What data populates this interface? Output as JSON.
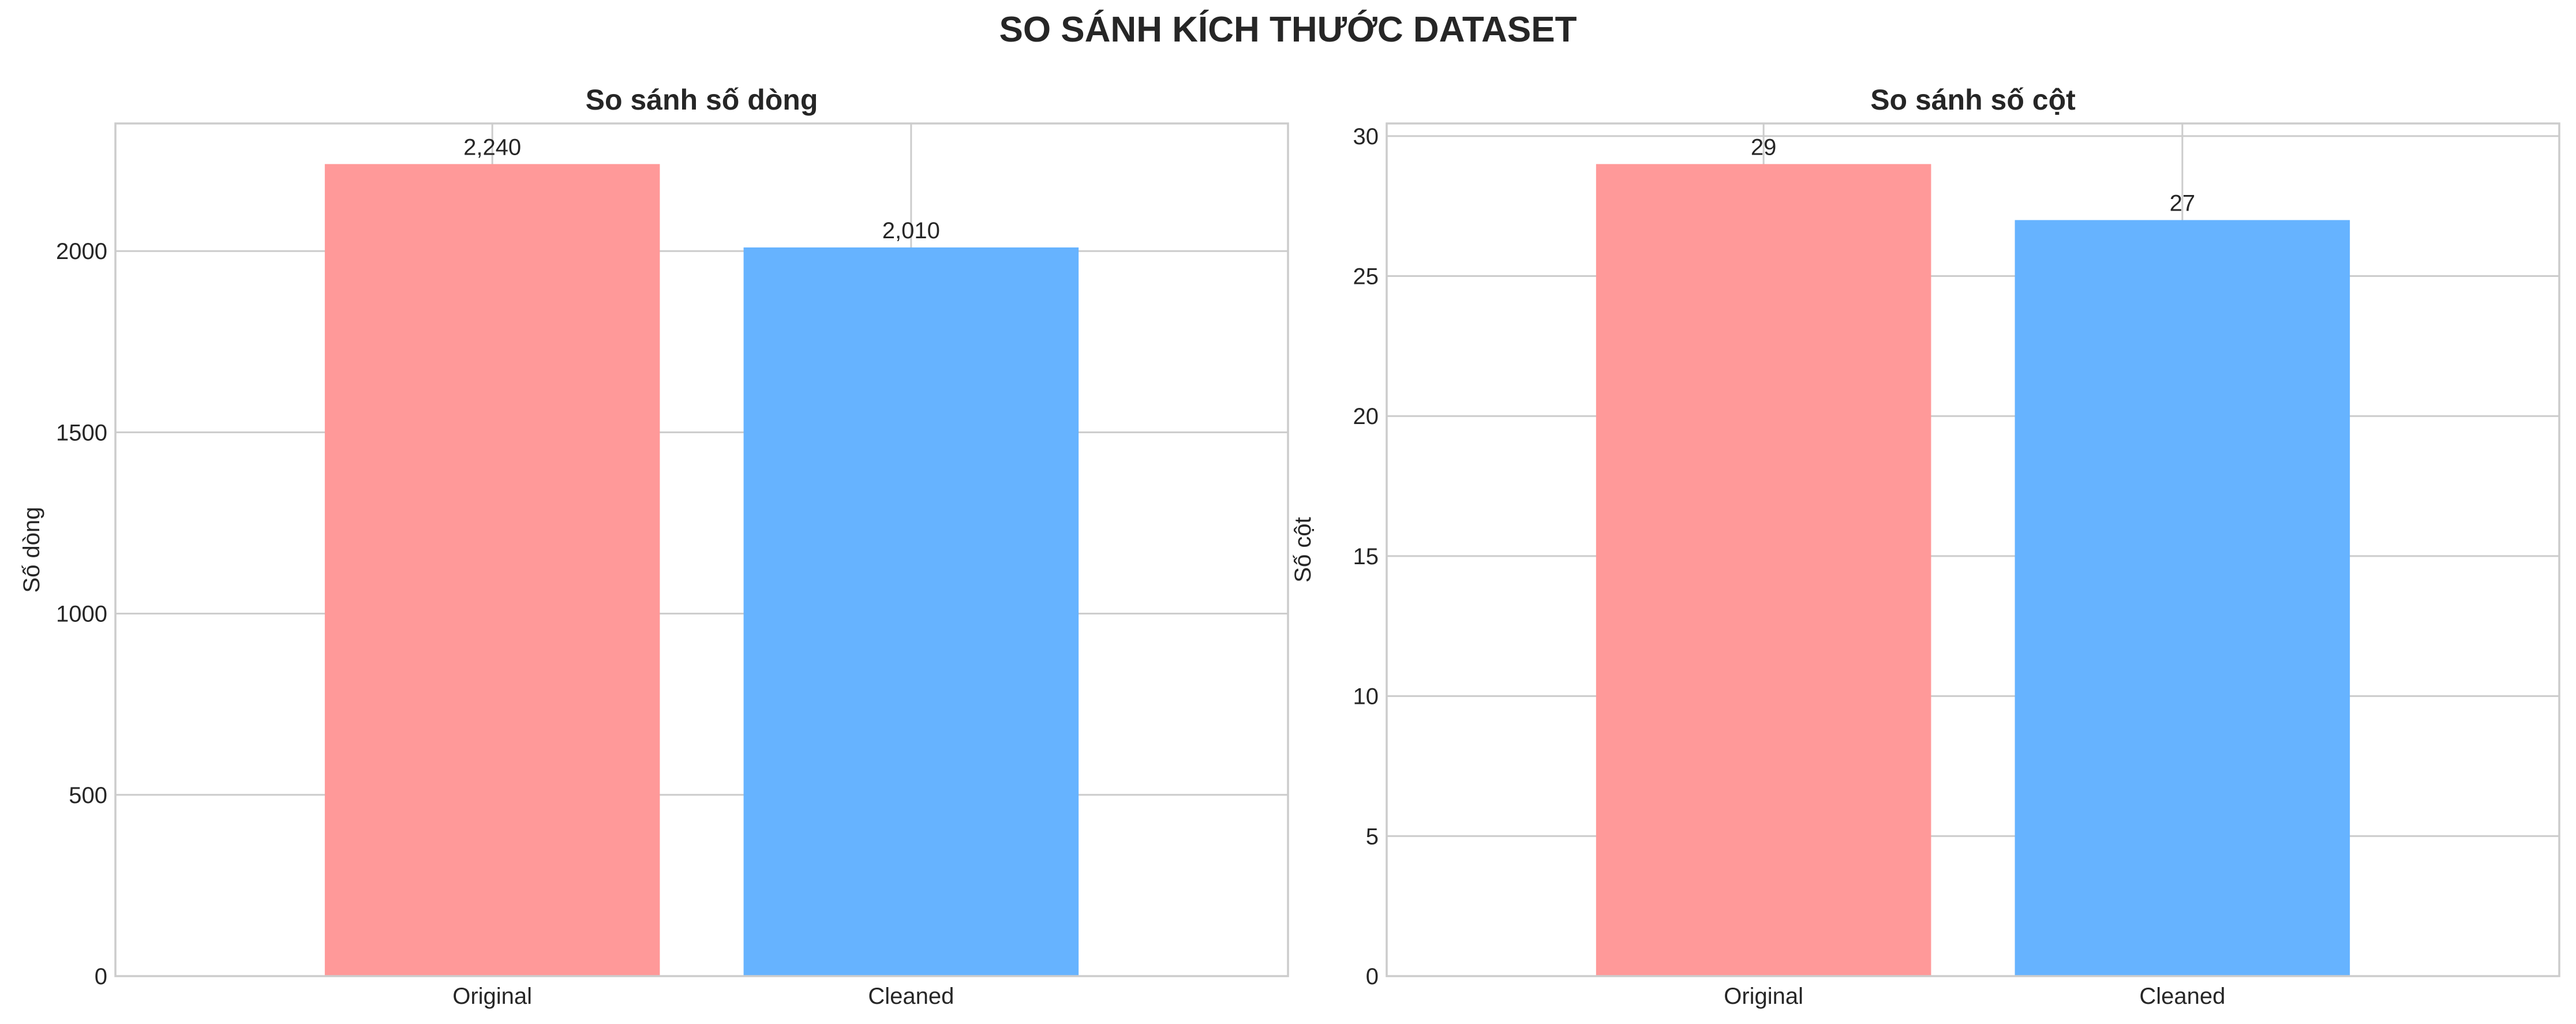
{
  "figure": {
    "title": "SO SÁNH KÍCH THƯỚC DATASET"
  },
  "chart_data": [
    {
      "type": "bar",
      "title": "So sánh số dòng",
      "xlabel": "",
      "ylabel": "Số dòng",
      "categories": [
        "Original",
        "Cleaned"
      ],
      "values": [
        2240,
        2010
      ],
      "value_labels": [
        "2,240",
        "2,010"
      ],
      "colors": [
        "#ff9999",
        "#66b3ff"
      ],
      "ylim": [
        0,
        2352
      ],
      "yticks": [
        0,
        500,
        1000,
        1500,
        2000
      ],
      "grid": true,
      "legend": "none"
    },
    {
      "type": "bar",
      "title": "So sánh số cột",
      "xlabel": "",
      "ylabel": "Số cột",
      "categories": [
        "Original",
        "Cleaned"
      ],
      "values": [
        29,
        27
      ],
      "value_labels": [
        "29",
        "27"
      ],
      "colors": [
        "#ff9999",
        "#66b3ff"
      ],
      "ylim": [
        0,
        30.45
      ],
      "yticks": [
        0,
        5,
        10,
        15,
        20,
        25,
        30
      ],
      "grid": true,
      "legend": "none"
    }
  ]
}
